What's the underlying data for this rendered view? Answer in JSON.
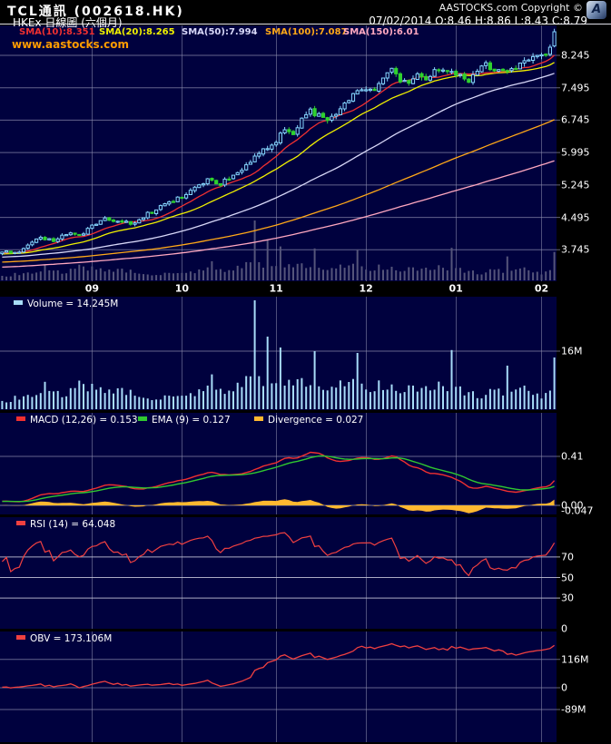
{
  "header": {
    "title": "TCL通訊 (002618.HK)",
    "subtitle": "HKEx 日線圖 (六個月)",
    "copyright": "AASTOCKS.com Copyright ©",
    "logo_letter": "A",
    "date_ohlc": "07/02/2014  O:8.46 H:8.86 L:8.43 C:8.79",
    "watermark": "www.aastocks.com"
  },
  "chart_data": {
    "type": "candlestick-with-indicators",
    "title": "TCL通訊 (002618.HK) HKEx 日線圖 (六個月)",
    "timeframe": "daily, six months (Aug 2013 - 07/02/2014)",
    "x_axis": {
      "days": 130,
      "month_labels": [
        "09",
        "10",
        "11",
        "12",
        "01",
        "02"
      ],
      "month_day_index": [
        21,
        42,
        64,
        85,
        106,
        126
      ]
    },
    "price_panel": {
      "yticks": [
        8.245,
        7.495,
        6.745,
        5.995,
        5.245,
        4.495,
        3.745
      ],
      "y_range_approx": [
        3.06,
        8.95
      ],
      "last_ohlc": {
        "open": 8.46,
        "high": 8.86,
        "low": 8.43,
        "close": 8.79
      },
      "close_anchors": [
        [
          0,
          3.72
        ],
        [
          3,
          3.66
        ],
        [
          6,
          3.85
        ],
        [
          9,
          4.02
        ],
        [
          12,
          3.95
        ],
        [
          15,
          4.12
        ],
        [
          18,
          4.06
        ],
        [
          21,
          4.28
        ],
        [
          24,
          4.46
        ],
        [
          27,
          4.42
        ],
        [
          30,
          4.34
        ],
        [
          33,
          4.52
        ],
        [
          36,
          4.68
        ],
        [
          39,
          4.86
        ],
        [
          42,
          4.96
        ],
        [
          45,
          5.22
        ],
        [
          48,
          5.36
        ],
        [
          51,
          5.28
        ],
        [
          54,
          5.46
        ],
        [
          57,
          5.68
        ],
        [
          59,
          5.92
        ],
        [
          61,
          6.06
        ],
        [
          64,
          6.28
        ],
        [
          66,
          6.52
        ],
        [
          68,
          6.44
        ],
        [
          70,
          6.76
        ],
        [
          72,
          6.96
        ],
        [
          74,
          6.84
        ],
        [
          76,
          6.7
        ],
        [
          78,
          6.94
        ],
        [
          80,
          7.12
        ],
        [
          82,
          7.3
        ],
        [
          85,
          7.5
        ],
        [
          87,
          7.44
        ],
        [
          89,
          7.78
        ],
        [
          91,
          8.0
        ],
        [
          93,
          7.66
        ],
        [
          95,
          7.58
        ],
        [
          97,
          7.76
        ],
        [
          99,
          7.7
        ],
        [
          101,
          7.86
        ],
        [
          103,
          7.96
        ],
        [
          105,
          7.88
        ],
        [
          107,
          7.78
        ],
        [
          109,
          7.68
        ],
        [
          111,
          7.86
        ],
        [
          113,
          8.02
        ],
        [
          115,
          7.94
        ],
        [
          117,
          7.84
        ],
        [
          119,
          7.92
        ],
        [
          121,
          8.06
        ],
        [
          123,
          8.16
        ],
        [
          125,
          8.22
        ],
        [
          127,
          8.32
        ],
        [
          128,
          8.46
        ],
        [
          129,
          8.79
        ]
      ],
      "sma": [
        {
          "period": 10,
          "label": "SMA(10):8.351",
          "value": 8.351,
          "color": "#f03030"
        },
        {
          "period": 20,
          "label": "SMA(20):8.265",
          "value": 8.265,
          "color": "#f0f000"
        },
        {
          "period": 50,
          "label": "SMA(50):7.994",
          "value": 7.994,
          "color": "#d8d8f8"
        },
        {
          "period": 100,
          "label": "SMA(100):7.087",
          "value": 7.087,
          "color": "#ffa818"
        },
        {
          "period": 150,
          "label": "SMA(150):6.01",
          "value": 6.01,
          "color": "#ffa8c0"
        }
      ],
      "candle_up_color": "#86d8ff",
      "candle_down_color": "#2fd12f",
      "overlay_volume_color": "#55557a"
    },
    "volume_panel": {
      "legend": "Volume = 14.245M",
      "last": 14.245,
      "unit": "M shares",
      "ymax": 31,
      "ytick": {
        "value": 16,
        "label": "16M"
      },
      "bar_color": "#a8dcf8",
      "anchors": [
        [
          0,
          2.5
        ],
        [
          6,
          3.5
        ],
        [
          10,
          6.5
        ],
        [
          14,
          4
        ],
        [
          18,
          7.5
        ],
        [
          22,
          5
        ],
        [
          26,
          4
        ],
        [
          30,
          6
        ],
        [
          34,
          3.2
        ],
        [
          38,
          3.6
        ],
        [
          42,
          3.2
        ],
        [
          46,
          5
        ],
        [
          49,
          7.5
        ],
        [
          52,
          4.2
        ],
        [
          55,
          6
        ],
        [
          59,
          9
        ],
        [
          62,
          8
        ],
        [
          65,
          8
        ],
        [
          68,
          6
        ],
        [
          71,
          8
        ],
        [
          74,
          6
        ],
        [
          77,
          5
        ],
        [
          80,
          7
        ],
        [
          83,
          6.5
        ],
        [
          86,
          5.5
        ],
        [
          89,
          6.5
        ],
        [
          92,
          5
        ],
        [
          95,
          5.5
        ],
        [
          98,
          4.5
        ],
        [
          101,
          6
        ],
        [
          104,
          7
        ],
        [
          107,
          5
        ],
        [
          110,
          4.5
        ],
        [
          113,
          4
        ],
        [
          116,
          5.5
        ],
        [
          119,
          4
        ],
        [
          122,
          5
        ],
        [
          125,
          3.8
        ],
        [
          128,
          5
        ],
        [
          129,
          14.245
        ]
      ],
      "spikes": [
        [
          59,
          30
        ],
        [
          62,
          20
        ],
        [
          65,
          17
        ],
        [
          73,
          16
        ],
        [
          83,
          15.5
        ],
        [
          105,
          16.3
        ],
        [
          118,
          12
        ],
        [
          129,
          14.245
        ]
      ]
    },
    "macd_panel": {
      "params": [
        12,
        26,
        9
      ],
      "legend": [
        "MACD (12,26) = 0.153",
        "EMA (9) = 0.127",
        "Divergence = 0.027"
      ],
      "last": {
        "macd": 0.153,
        "ema9": 0.127,
        "divergence": 0.027
      },
      "yticks": [
        {
          "value": 0.41,
          "label": "0.41"
        },
        {
          "value": 0,
          "label": "0.00"
        },
        {
          "value": -0.047,
          "label": "-0.047"
        }
      ],
      "macd_color": "#f03030",
      "signal_color": "#30c830",
      "divergence_color": "#ffb830"
    },
    "rsi_panel": {
      "period": 14,
      "legend": "RSI (14) = 64.048",
      "last": 64.048,
      "yticks": [
        70,
        50,
        30,
        0
      ],
      "line_color": "#f04040"
    },
    "obv_panel": {
      "legend": "OBV = 173.106M",
      "last_millions": 173.106,
      "yticks": [
        {
          "value": 116,
          "label": "116M"
        },
        {
          "value": 0,
          "label": "0"
        },
        {
          "value": -89,
          "label": "-89M"
        }
      ],
      "line_color": "#f04040"
    },
    "colors": {
      "panel_background": "#00013e",
      "outer_background": "#000000",
      "gridline": "#8d8dae",
      "rsi_gridline": "#c9c9dc",
      "axis_text": "#ffffff"
    }
  }
}
